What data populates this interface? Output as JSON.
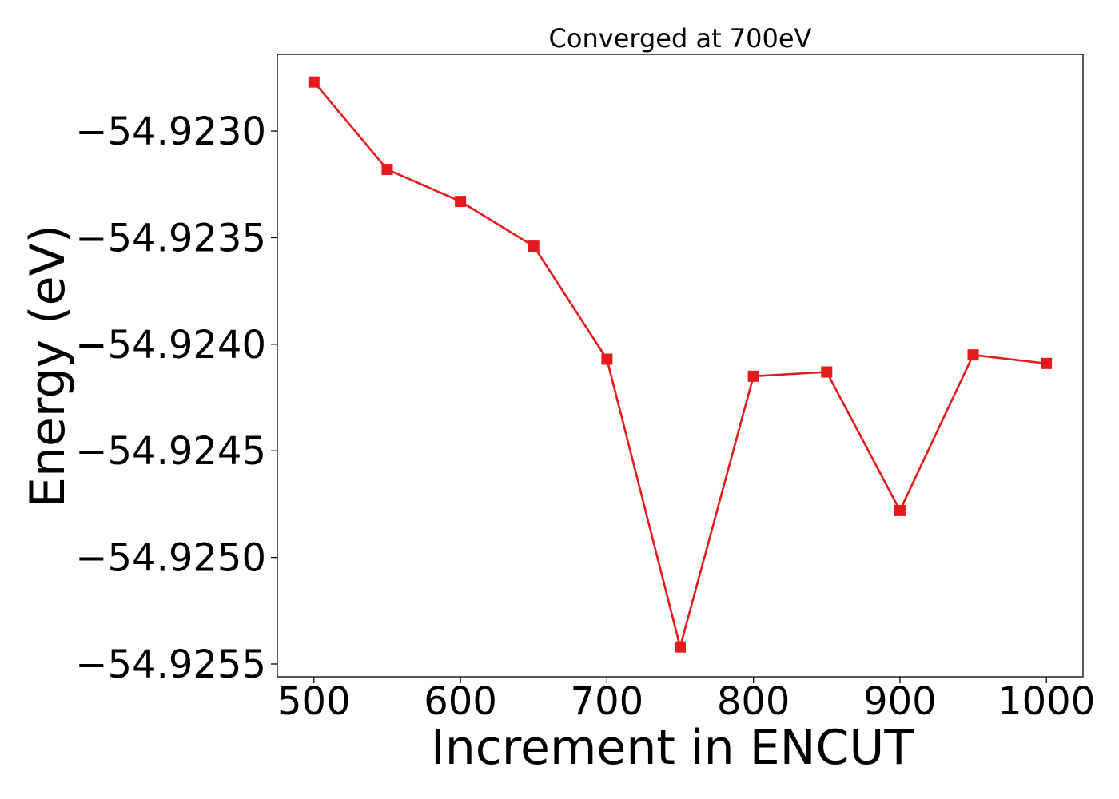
{
  "chart_data": {
    "type": "line",
    "title": "Converged at 700eV",
    "xlabel": "Increment in ENCUT",
    "ylabel": "Energy (eV)",
    "x": [
      500,
      550,
      600,
      650,
      700,
      750,
      800,
      850,
      900,
      950,
      1000
    ],
    "series": [
      {
        "values": [
          -54.92277,
          -54.92318,
          -54.92333,
          -54.92354,
          -54.92407,
          -54.92542,
          -54.92415,
          -54.92413,
          -54.92478,
          -54.92405,
          -54.92409
        ],
        "color": "#e41a1c",
        "marker": "square"
      }
    ],
    "xlim": [
      475,
      1025
    ],
    "ylim": [
      -54.92556,
      -54.92264
    ],
    "x_ticks": [
      500,
      600,
      700,
      800,
      900,
      1000
    ],
    "x_tick_labels": [
      "500",
      "600",
      "700",
      "800",
      "900",
      "1000"
    ],
    "y_ticks": [
      -54.923,
      -54.9235,
      -54.924,
      -54.9245,
      -54.925,
      -54.9255
    ],
    "y_tick_labels": [
      "−54.9230",
      "−54.9235",
      "−54.9240",
      "−54.9245",
      "−54.9250",
      "−54.9255"
    ],
    "grid": false,
    "legend": "none"
  }
}
